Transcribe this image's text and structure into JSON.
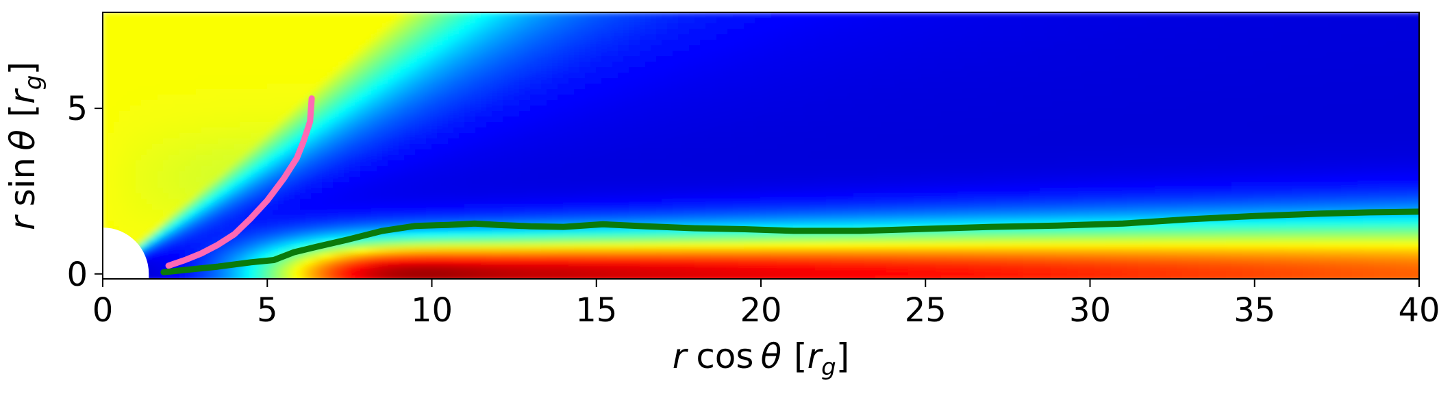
{
  "chart_data": {
    "type": "heatmap",
    "title": "",
    "xlabel": {
      "r": "r",
      "func": "cos",
      "theta": "θ",
      "unit": "r",
      "unit_sub": "g"
    },
    "ylabel": {
      "r": "r",
      "func": "sin",
      "theta": "θ",
      "unit": "r",
      "unit_sub": "g"
    },
    "xlim": [
      0,
      40
    ],
    "ylim": [
      -0.15,
      7.9
    ],
    "x_ticks": [
      0,
      5,
      10,
      15,
      20,
      25,
      30,
      35,
      40
    ],
    "y_ticks": [
      0,
      5
    ],
    "colormap": "jet",
    "black_hole_radius": 1.4,
    "series": [
      {
        "color": "#ff69b4",
        "points": [
          [
            2.0,
            0.25
          ],
          [
            2.5,
            0.42
          ],
          [
            3.0,
            0.62
          ],
          [
            3.5,
            0.88
          ],
          [
            4.0,
            1.2
          ],
          [
            4.5,
            1.68
          ],
          [
            5.0,
            2.22
          ],
          [
            5.5,
            2.88
          ],
          [
            5.9,
            3.5
          ],
          [
            6.1,
            4.0
          ],
          [
            6.3,
            4.6
          ],
          [
            6.35,
            5.3
          ]
        ]
      },
      {
        "color": "#0a7a0a",
        "points": [
          [
            1.85,
            0.05
          ],
          [
            2.5,
            0.12
          ],
          [
            3.5,
            0.22
          ],
          [
            4.5,
            0.35
          ],
          [
            5.2,
            0.42
          ],
          [
            5.8,
            0.65
          ],
          [
            6.5,
            0.82
          ],
          [
            7.5,
            1.05
          ],
          [
            8.5,
            1.3
          ],
          [
            9.5,
            1.45
          ],
          [
            10.5,
            1.48
          ],
          [
            11.3,
            1.52
          ],
          [
            12.0,
            1.48
          ],
          [
            13.0,
            1.44
          ],
          [
            14.0,
            1.42
          ],
          [
            15.2,
            1.5
          ],
          [
            16.5,
            1.44
          ],
          [
            18.0,
            1.38
          ],
          [
            19.5,
            1.35
          ],
          [
            21.0,
            1.3
          ],
          [
            23.0,
            1.3
          ],
          [
            25.0,
            1.36
          ],
          [
            27.0,
            1.42
          ],
          [
            29.0,
            1.46
          ],
          [
            31.0,
            1.52
          ],
          [
            33.0,
            1.65
          ],
          [
            35.0,
            1.75
          ],
          [
            37.0,
            1.82
          ],
          [
            38.5,
            1.86
          ],
          [
            40.0,
            1.88
          ]
        ]
      }
    ]
  }
}
